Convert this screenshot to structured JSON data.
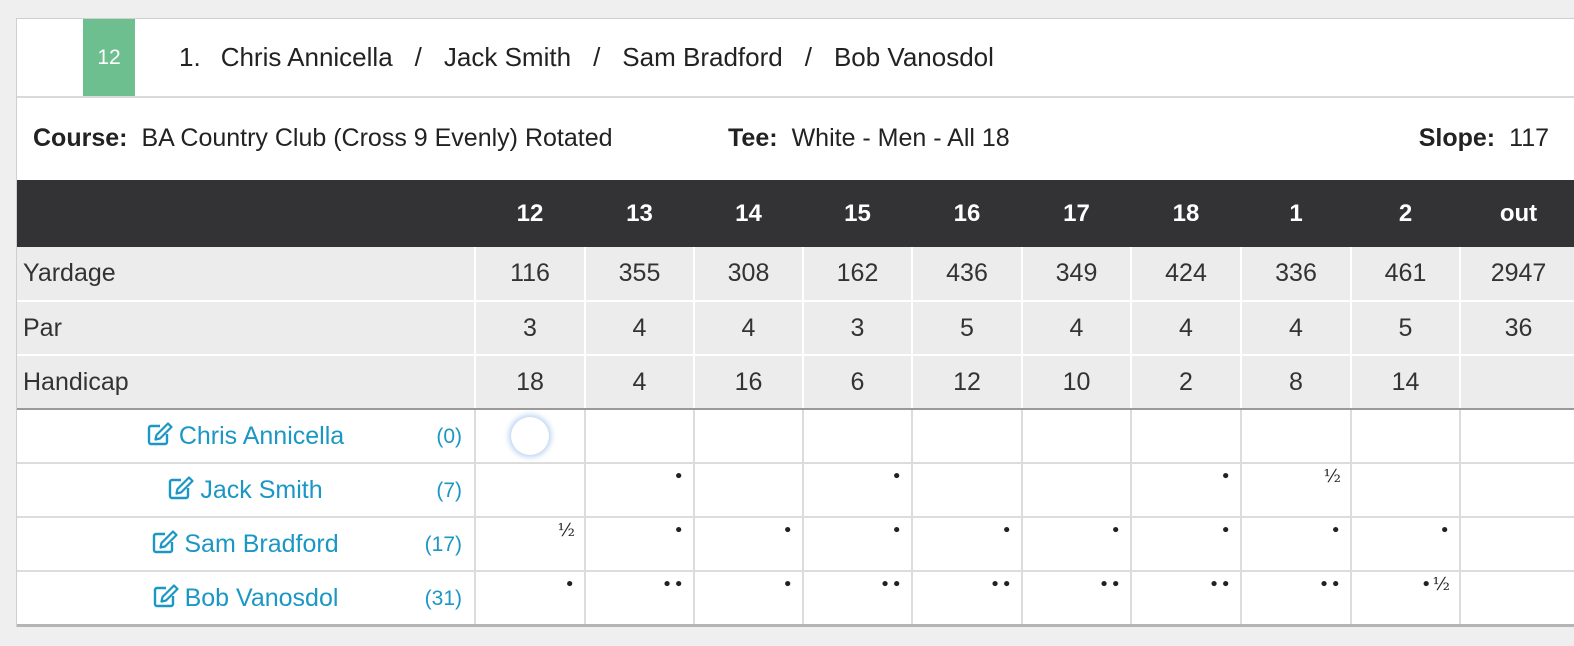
{
  "group": {
    "badge": "12",
    "number": "1.",
    "players": [
      "Chris Annicella",
      "Jack Smith",
      "Sam Bradford",
      "Bob Vanosdol"
    ],
    "separator": "/"
  },
  "course": {
    "course_label": "Course:",
    "course_value": "BA Country Club (Cross 9 Evenly) Rotated",
    "tee_label": "Tee:",
    "tee_value": "White - Men - All 18",
    "slope_label": "Slope:",
    "slope_value": "117"
  },
  "holes": [
    "12",
    "13",
    "14",
    "15",
    "16",
    "17",
    "18",
    "1",
    "2",
    "out"
  ],
  "info_rows": [
    {
      "label": "Yardage",
      "values": [
        "116",
        "355",
        "308",
        "162",
        "436",
        "349",
        "424",
        "336",
        "461",
        "2947"
      ]
    },
    {
      "label": "Par",
      "values": [
        "3",
        "4",
        "4",
        "3",
        "5",
        "4",
        "4",
        "4",
        "5",
        "36"
      ]
    },
    {
      "label": "Handicap",
      "values": [
        "18",
        "4",
        "16",
        "6",
        "12",
        "10",
        "2",
        "8",
        "14",
        ""
      ]
    }
  ],
  "player_rows": [
    {
      "name": "Chris Annicella",
      "handicap": "(0)",
      "strokes": [
        "",
        "",
        "",
        "",
        "",
        "",
        "",
        "",
        "",
        ""
      ]
    },
    {
      "name": "Jack Smith",
      "handicap": "(7)",
      "strokes": [
        "",
        "•",
        "",
        "•",
        "",
        "",
        "•",
        "½",
        "",
        ""
      ]
    },
    {
      "name": "Sam Bradford",
      "handicap": "(17)",
      "strokes": [
        "½",
        "•",
        "•",
        "•",
        "•",
        "•",
        "•",
        "•",
        "•",
        ""
      ]
    },
    {
      "name": "Bob Vanosdol",
      "handicap": "(31)",
      "strokes": [
        "•",
        "••",
        "•",
        "••",
        "••",
        "••",
        "••",
        "••",
        "•½",
        ""
      ]
    }
  ],
  "colors": {
    "badge": "#6dbf8f",
    "header_bg": "#333335",
    "link": "#1a97c4",
    "info_bg": "#ececec"
  },
  "icons": {
    "edit": "edit-pencil-icon"
  }
}
